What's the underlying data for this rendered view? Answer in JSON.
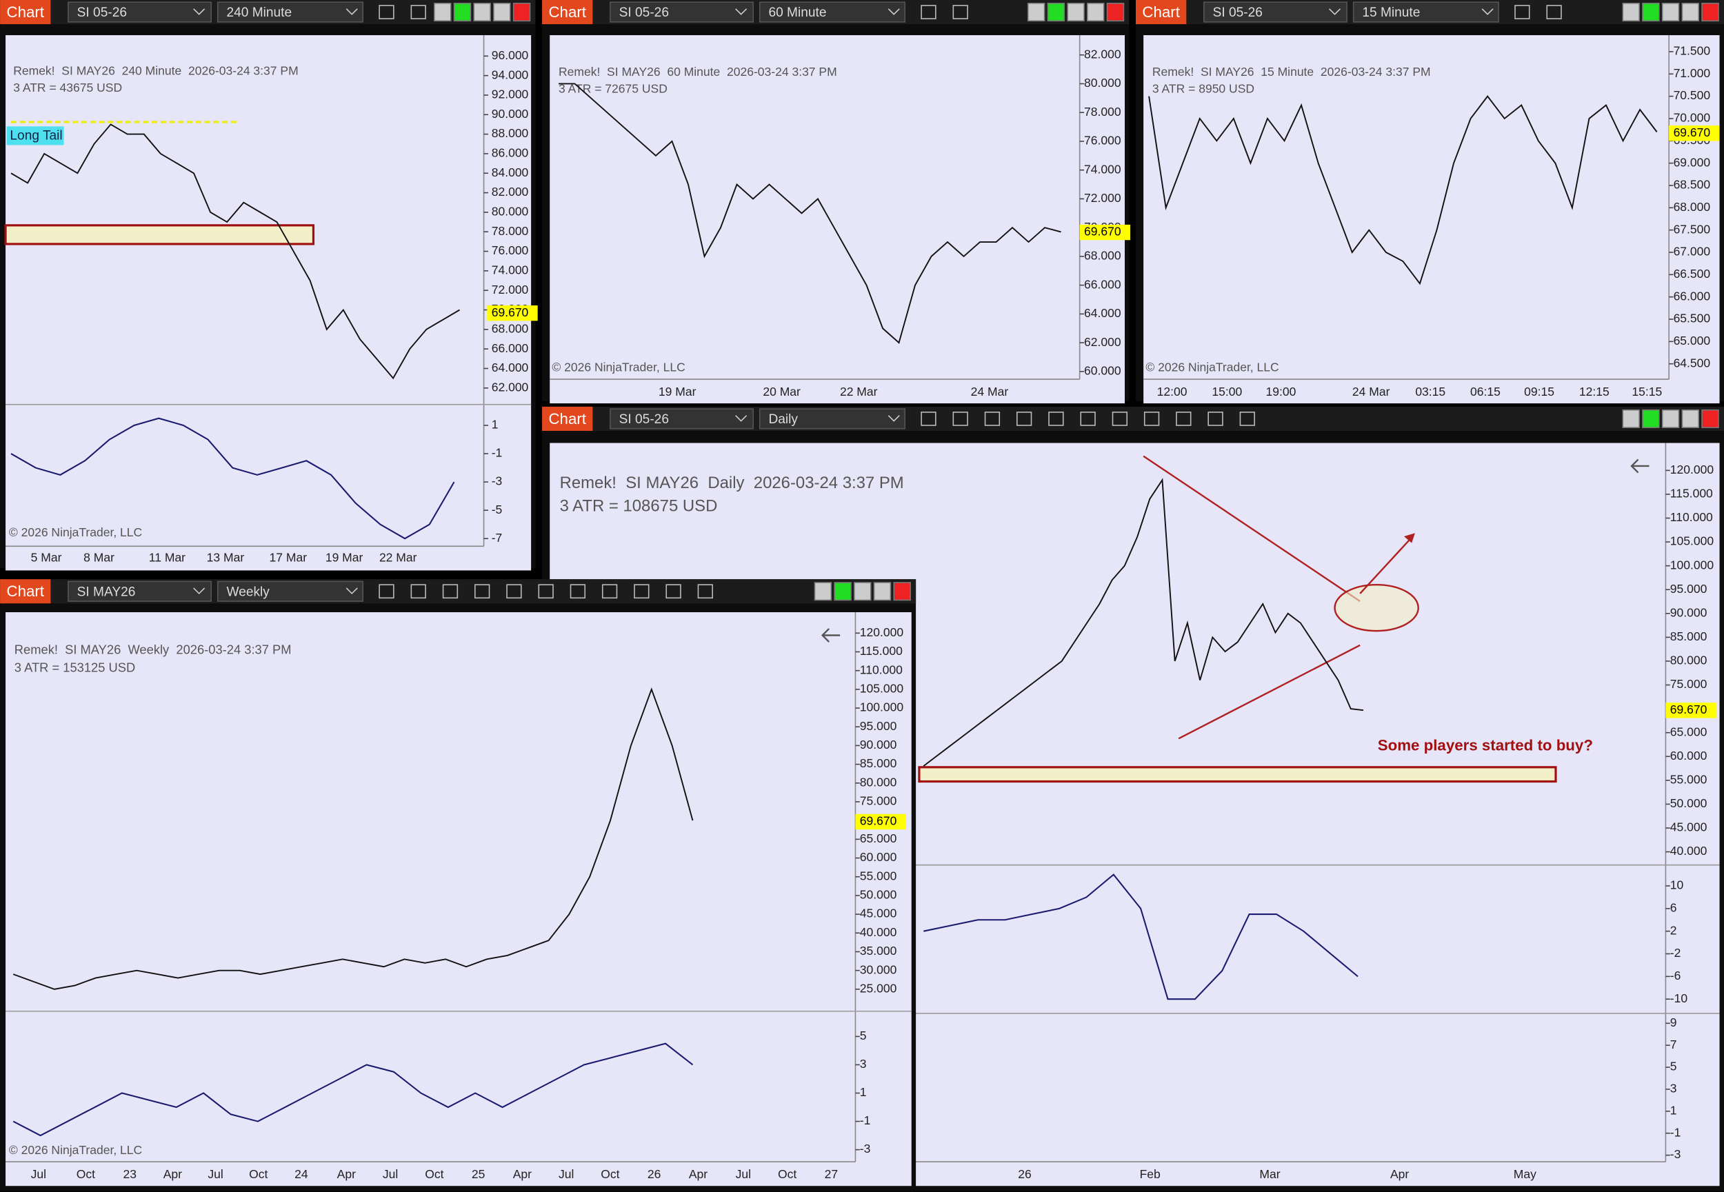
{
  "windows": [
    {
      "tab": "Chart",
      "instrument": "SI 05-26",
      "interval": "240 Minute",
      "title": "Remek!  SI MAY26  240 Minute  2026-03-24 3:37 PM",
      "atr": "3 ATR = 43675 USD",
      "copyright": "© 2026 NinjaTrader, LLC",
      "label": "Long Tail",
      "price": {
        "ylim": [
          62,
          96
        ],
        "yticks": [
          {
            "value": 96,
            "label": "96.000"
          },
          {
            "value": 94,
            "label": "94.000"
          },
          {
            "value": 92,
            "label": "92.000"
          },
          {
            "value": 90,
            "label": "90.000"
          },
          {
            "value": 88,
            "label": "88.000"
          },
          {
            "value": 86,
            "label": "86.000"
          },
          {
            "value": 84,
            "label": "84.000"
          },
          {
            "value": 82,
            "label": "82.000"
          },
          {
            "value": 80,
            "label": "80.000"
          },
          {
            "value": 78,
            "label": "78.000"
          },
          {
            "value": 76,
            "label": "76.000"
          },
          {
            "value": 74,
            "label": "74.000"
          },
          {
            "value": 72,
            "label": "72.000"
          },
          {
            "value": 70,
            "label": "70.000"
          },
          {
            "value": 68,
            "label": "68.000"
          },
          {
            "value": 66,
            "label": "66.000"
          },
          {
            "value": 64,
            "label": "64.000"
          },
          {
            "value": 62,
            "label": "62.000"
          }
        ],
        "last": {
          "value": 69.67,
          "label": "69.670"
        },
        "closes": [
          84,
          83,
          86,
          85,
          84,
          87,
          89,
          88,
          88,
          86,
          85,
          84,
          80,
          79,
          81,
          80,
          79,
          76,
          73,
          68,
          70,
          67,
          65,
          63,
          66,
          68,
          69,
          70
        ]
      },
      "indicator": {
        "ylim": [
          -7,
          1
        ],
        "yticks": [
          1,
          -1,
          -3,
          -5,
          -7
        ],
        "values": [
          -1,
          -2,
          -2.5,
          -1.5,
          0,
          1,
          1.5,
          1,
          0,
          -2,
          -2.5,
          -2,
          -1.5,
          -2.5,
          -4.5,
          -6,
          -7,
          -6,
          -3
        ]
      },
      "xlabels": [
        "5 Mar",
        "8 Mar",
        "11 Mar",
        "13 Mar",
        "17 Mar",
        "19 Mar",
        "22 Mar"
      ]
    },
    {
      "tab": "Chart",
      "instrument": "SI 05-26",
      "interval": "60 Minute",
      "title": "Remek!  SI MAY26  60 Minute  2026-03-24 3:37 PM",
      "atr": "3 ATR = 72675 USD",
      "copyright": "© 2026 NinjaTrader, LLC",
      "price": {
        "ylim": [
          60,
          82
        ],
        "yticks": [
          {
            "value": 82,
            "label": "82.000"
          },
          {
            "value": 80,
            "label": "80.000"
          },
          {
            "value": 78,
            "label": "78.000"
          },
          {
            "value": 76,
            "label": "76.000"
          },
          {
            "value": 74,
            "label": "74.000"
          },
          {
            "value": 72,
            "label": "72.000"
          },
          {
            "value": 70,
            "label": "70.000"
          },
          {
            "value": 68,
            "label": "68.000"
          },
          {
            "value": 66,
            "label": "66.000"
          },
          {
            "value": 64,
            "label": "64.000"
          },
          {
            "value": 62,
            "label": "62.000"
          },
          {
            "value": 60,
            "label": "60.000"
          }
        ],
        "last": {
          "value": 69.67,
          "label": "69.670"
        },
        "closes": [
          80,
          80,
          79,
          78,
          77,
          76,
          75,
          76,
          73,
          68,
          70,
          73,
          72,
          73,
          72,
          71,
          72,
          70,
          68,
          66,
          63,
          62,
          66,
          68,
          69,
          68,
          69,
          69,
          70,
          69,
          70,
          69.7
        ]
      },
      "xlabels": [
        "19 Mar",
        "20 Mar",
        "22 Mar",
        "24 Mar"
      ]
    },
    {
      "tab": "Chart",
      "instrument": "SI 05-26",
      "interval": "15 Minute",
      "title": "Remek!  SI MAY26  15 Minute  2026-03-24 3:37 PM",
      "atr": "3 ATR = 8950 USD",
      "copyright": "© 2026 NinjaTrader, LLC",
      "price": {
        "ylim": [
          64.5,
          71.5
        ],
        "yticks": [
          {
            "value": 71.5,
            "label": "71.500"
          },
          {
            "value": 71,
            "label": "71.000"
          },
          {
            "value": 70.5,
            "label": "70.500"
          },
          {
            "value": 70,
            "label": "70.000"
          },
          {
            "value": 69.5,
            "label": "69.500"
          },
          {
            "value": 69,
            "label": "69.000"
          },
          {
            "value": 68.5,
            "label": "68.500"
          },
          {
            "value": 68,
            "label": "68.000"
          },
          {
            "value": 67.5,
            "label": "67.500"
          },
          {
            "value": 67,
            "label": "67.000"
          },
          {
            "value": 66.5,
            "label": "66.500"
          },
          {
            "value": 66,
            "label": "66.000"
          },
          {
            "value": 65.5,
            "label": "65.500"
          },
          {
            "value": 65,
            "label": "65.000"
          },
          {
            "value": 64.5,
            "label": "64.500"
          }
        ],
        "last": {
          "value": 69.67,
          "label": "69.670"
        },
        "closes": [
          70.5,
          68,
          69,
          70,
          69.5,
          70,
          69,
          70,
          69.5,
          70.3,
          69,
          68,
          67,
          67.5,
          67,
          66.8,
          66.3,
          67.5,
          69,
          70,
          70.5,
          70,
          70.3,
          69.5,
          69,
          68,
          70,
          70.3,
          69.5,
          70.2,
          69.7
        ]
      },
      "xlabels": [
        "12:00",
        "15:00",
        "19:00",
        "24 Mar",
        "03:15",
        "06:15",
        "09:15",
        "12:15",
        "15:15"
      ]
    },
    {
      "tab": "Chart",
      "instrument": "SI 05-26",
      "interval": "Daily",
      "title": "Remek!  SI MAY26  Daily  2026-03-24 3:37 PM",
      "atr": "3 ATR = 108675 USD",
      "annotation": "Some players started to buy?",
      "price": {
        "ylim": [
          40,
          120
        ],
        "yticks": [
          {
            "value": 120,
            "label": "120.000"
          },
          {
            "value": 115,
            "label": "115.000"
          },
          {
            "value": 110,
            "label": "110.000"
          },
          {
            "value": 105,
            "label": "105.000"
          },
          {
            "value": 100,
            "label": "100.000"
          },
          {
            "value": 95,
            "label": "95.000"
          },
          {
            "value": 90,
            "label": "90.000"
          },
          {
            "value": 85,
            "label": "85.000"
          },
          {
            "value": 80,
            "label": "80.000"
          },
          {
            "value": 75,
            "label": "75.000"
          },
          {
            "value": 70,
            "label": "70.000"
          },
          {
            "value": 65,
            "label": "65.000"
          },
          {
            "value": 60,
            "label": "60.000"
          },
          {
            "value": 55,
            "label": "55.000"
          },
          {
            "value": 50,
            "label": "50.000"
          },
          {
            "value": 45,
            "label": "45.000"
          },
          {
            "value": 40,
            "label": "40.000"
          }
        ],
        "last": {
          "value": 69.67,
          "label": "69.670"
        },
        "closes": [
          58,
          60,
          62,
          64,
          66,
          68,
          70,
          72,
          74,
          76,
          78,
          80,
          84,
          88,
          92,
          97,
          100,
          106,
          114,
          118,
          80,
          88,
          76,
          85,
          82,
          84,
          88,
          92,
          86,
          90,
          88,
          84,
          80,
          76,
          70,
          69.7
        ]
      },
      "indicator": {
        "ylim": [
          -10,
          10
        ],
        "yticks": [
          10,
          6,
          2,
          -2,
          -6,
          -10
        ],
        "values": [
          2,
          3,
          4,
          4,
          5,
          6,
          8,
          12,
          6,
          -10,
          -10,
          -5,
          5,
          5,
          2,
          -2,
          -6
        ]
      },
      "indicator2": {
        "ylim": [
          -3,
          9
        ],
        "yticks": [
          9,
          7,
          5,
          3,
          1,
          -1,
          -3
        ]
      },
      "xlabels": [
        "26",
        "Feb",
        "Mar",
        "Apr",
        "May"
      ]
    },
    {
      "tab": "Chart",
      "instrument": "SI MAY26",
      "interval": "Weekly",
      "title": "Remek!  SI MAY26  Weekly  2026-03-24 3:37 PM",
      "atr": "3 ATR = 153125 USD",
      "copyright": "© 2026 NinjaTrader, LLC",
      "price": {
        "ylim": [
          25,
          120
        ],
        "yticks": [
          {
            "value": 120,
            "label": "120.000"
          },
          {
            "value": 115,
            "label": "115.000"
          },
          {
            "value": 110,
            "label": "110.000"
          },
          {
            "value": 105,
            "label": "105.000"
          },
          {
            "value": 100,
            "label": "100.000"
          },
          {
            "value": 95,
            "label": "95.000"
          },
          {
            "value": 90,
            "label": "90.000"
          },
          {
            "value": 85,
            "label": "85.000"
          },
          {
            "value": 80,
            "label": "80.000"
          },
          {
            "value": 75,
            "label": "75.000"
          },
          {
            "value": 70,
            "label": "70.000"
          },
          {
            "value": 65,
            "label": "65.000"
          },
          {
            "value": 60,
            "label": "60.000"
          },
          {
            "value": 55,
            "label": "55.000"
          },
          {
            "value": 50,
            "label": "50.000"
          },
          {
            "value": 45,
            "label": "45.000"
          },
          {
            "value": 40,
            "label": "40.000"
          },
          {
            "value": 35,
            "label": "35.000"
          },
          {
            "value": 30,
            "label": "30.000"
          },
          {
            "value": 25,
            "label": "25.000"
          }
        ],
        "last": {
          "value": 69.67,
          "label": "69.670"
        },
        "closes": [
          29,
          27,
          25,
          26,
          28,
          29,
          30,
          29,
          28,
          29,
          30,
          30,
          29,
          30,
          31,
          32,
          33,
          32,
          31,
          33,
          32,
          33,
          31,
          33,
          34,
          36,
          38,
          45,
          55,
          70,
          90,
          105,
          90,
          70
        ]
      },
      "indicator": {
        "ylim": [
          -3,
          5
        ],
        "yticks": [
          5,
          3,
          1,
          -1,
          -3
        ],
        "values": [
          -1,
          -2,
          -1,
          0,
          1,
          0.5,
          0,
          1,
          -0.5,
          -1,
          0,
          1,
          2,
          3,
          2.5,
          1,
          0,
          1,
          0,
          1,
          2,
          3,
          3.5,
          4,
          4.5,
          3
        ]
      },
      "xlabels": [
        "Jul",
        "Oct",
        "23",
        "Apr",
        "Jul",
        "Oct",
        "24",
        "Apr",
        "Jul",
        "Oct",
        "25",
        "Apr",
        "Jul",
        "Oct",
        "26",
        "Apr",
        "Jul",
        "Oct",
        "27"
      ]
    }
  ]
}
